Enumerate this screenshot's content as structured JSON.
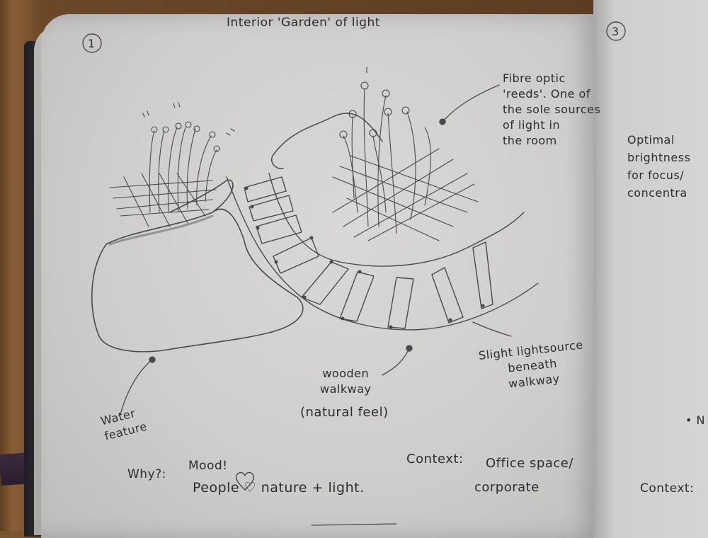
{
  "page": {
    "title": "Interior 'Garden' of light",
    "left_page_number": "1",
    "right_page_number": "3"
  },
  "annotations": {
    "reeds": "Fibre optic\n'reeds'. One of\nthe sole sources\nof light in\nthe room",
    "water_feature": "Water\nfeature",
    "walkway": "wooden\nwalkway",
    "natural_feel": "(natural feel)",
    "light_source": "Slight lightsource\nbeneath\nwalkway"
  },
  "notes": {
    "why_label": "Why?:",
    "mood": "Mood!",
    "people_line": "People ♡ nature + light.",
    "context_label": "Context:",
    "context_line1": "Office space/",
    "context_line2": "corporate"
  },
  "right_page": {
    "optimal": "Optimal\nbrightness\nfor focus/\nconcentra",
    "context_label": "Context:",
    "bullet": "• N"
  }
}
